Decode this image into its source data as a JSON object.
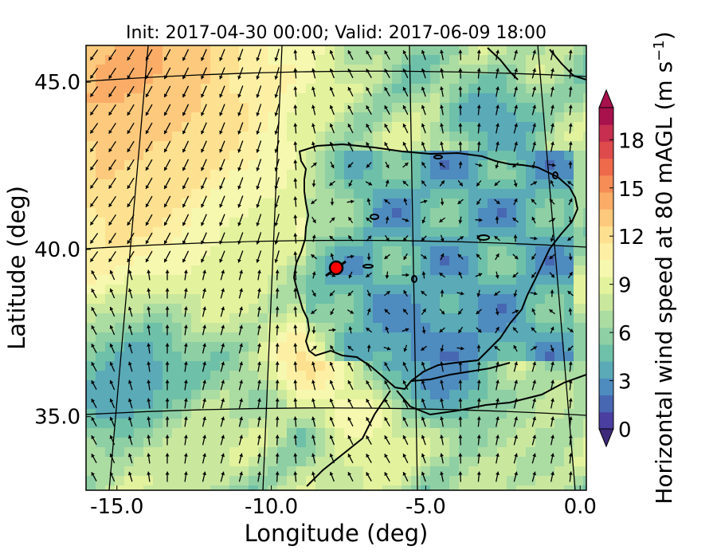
{
  "title": "Init: 2017-04-30 00:00; Valid: 2017-06-09 18:00",
  "x_axis": {
    "label": "Longitude (deg)",
    "range": [
      -16.0,
      0.2
    ],
    "ticks": [
      {
        "value": -15.0,
        "label": "-15.0"
      },
      {
        "value": -10.0,
        "label": "-10.0"
      },
      {
        "value": -5.0,
        "label": "-5.0"
      },
      {
        "value": 0.0,
        "label": "0.0"
      }
    ]
  },
  "y_axis": {
    "label": "Latitude (deg)",
    "range": [
      32.8,
      46.1
    ],
    "ticks": [
      {
        "value": 45.0,
        "label": "45.0"
      },
      {
        "value": 40.0,
        "label": "40.0"
      },
      {
        "value": 35.0,
        "label": "35.0"
      }
    ]
  },
  "colorbar": {
    "label": "Horizontal wind speed at 80 mAGL (m s",
    "label_sup": "−1",
    "label_end": ")",
    "min": 0,
    "max": 20,
    "extend": "both",
    "ticks": [
      {
        "value": 0,
        "label": "0"
      },
      {
        "value": 3,
        "label": "3"
      },
      {
        "value": 6,
        "label": "6"
      },
      {
        "value": 9,
        "label": "9"
      },
      {
        "value": 12,
        "label": "12"
      },
      {
        "value": 15,
        "label": "15"
      },
      {
        "value": 18,
        "label": "18"
      }
    ],
    "colors": [
      "#4a3ea0",
      "#4867b2",
      "#4e8bbf",
      "#5aaab8",
      "#6ec1a8",
      "#8ecfa4",
      "#abdca2",
      "#c9e89e",
      "#e3f29d",
      "#f5f8ae",
      "#fdf0a4",
      "#fee190",
      "#fdc97c",
      "#fbad68",
      "#f68d57",
      "#ee6a4b",
      "#dd4b4c",
      "#c62f4f",
      "#a7114c"
    ]
  },
  "chart_data": {
    "type": "heatmap",
    "variable": "Horizontal wind speed at 80 mAGL",
    "units": "m s^-1",
    "init_time": "2017-04-30 00:00",
    "valid_time": "2017-06-09 18:00",
    "marker": {
      "lon": -7.6,
      "lat": 39.4,
      "color": "#ff0000"
    },
    "region": "Iberian Peninsula",
    "xlim": [
      -16.0,
      0.2
    ],
    "ylim": [
      32.8,
      46.1
    ],
    "clim": [
      0,
      20
    ],
    "wind_vectors": "shown",
    "grid": "graticule every 5 deg"
  },
  "colors": {
    "marker": "#ff0000",
    "coast": "#000000"
  }
}
